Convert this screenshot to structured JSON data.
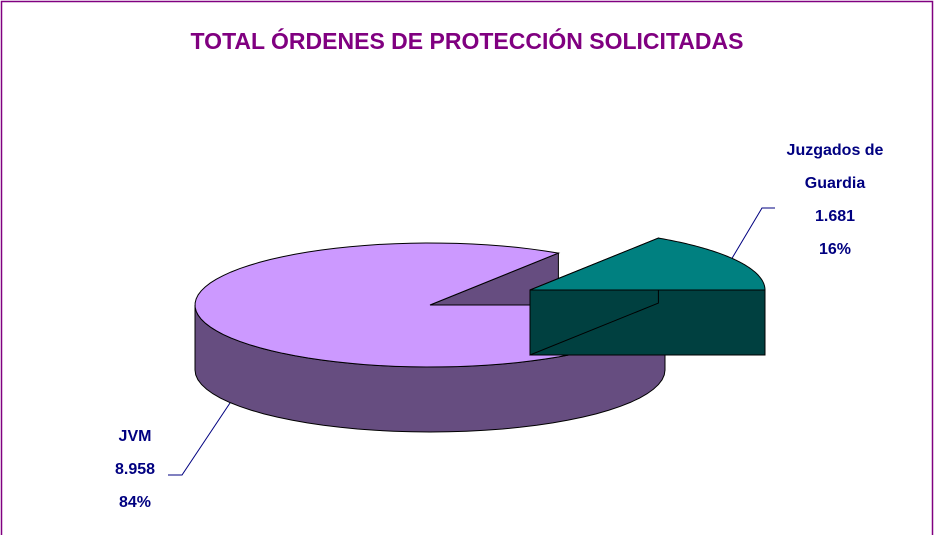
{
  "chart_data": {
    "type": "pie",
    "title": "TOTAL ÓRDENES DE PROTECCIÓN SOLICITADAS",
    "categories": [
      "JVM",
      "Juzgados de Guardia"
    ],
    "values": [
      8958,
      1681
    ],
    "value_labels": [
      "8.958",
      "1.681"
    ],
    "percents": [
      84,
      16
    ],
    "percent_labels": [
      "84%",
      "16%"
    ],
    "colors": [
      "#cc99ff",
      "#008080"
    ]
  }
}
